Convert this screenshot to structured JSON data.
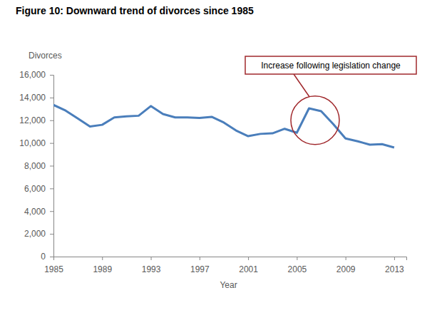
{
  "chart_data": {
    "type": "line",
    "title": "Figure 10: Downward trend of divorces since 1985",
    "y_label": "Divorces",
    "x_label": "Year",
    "x": [
      1985,
      1986,
      1987,
      1988,
      1989,
      1990,
      1991,
      1992,
      1993,
      1994,
      1995,
      1996,
      1997,
      1998,
      1999,
      2000,
      2001,
      2002,
      2003,
      2004,
      2005,
      2006,
      2007,
      2008,
      2009,
      2010,
      2011,
      2012,
      2013
    ],
    "values": [
      13350,
      12850,
      12150,
      11450,
      11600,
      12250,
      12350,
      12400,
      13250,
      12550,
      12250,
      12250,
      12200,
      12300,
      11800,
      11100,
      10600,
      10800,
      10850,
      11250,
      10900,
      13050,
      12800,
      11650,
      10400,
      10150,
      9850,
      9900,
      9600
    ],
    "color": "#4a7ebb",
    "xlim": [
      1985,
      2014
    ],
    "xticks": [
      1985,
      1989,
      1993,
      1997,
      2001,
      2005,
      2009,
      2013
    ],
    "ylim": [
      0,
      16000
    ],
    "yticks": [
      0,
      {
        "value": 2000,
        "label": "2,000"
      },
      {
        "value": 4000,
        "label": "4,000"
      },
      {
        "value": 6000,
        "label": "6,000"
      },
      {
        "value": 8000,
        "label": "8,000"
      },
      {
        "value": 10000,
        "label": "10,000"
      },
      {
        "value": 12000,
        "label": "12,000"
      },
      {
        "value": 14000,
        "label": "14,000"
      },
      {
        "value": 16000,
        "label": "16,000"
      }
    ],
    "grid": false,
    "annotations": [
      {
        "text": "Increase following legislation change",
        "x": 2006.5,
        "y": 12000
      }
    ]
  }
}
